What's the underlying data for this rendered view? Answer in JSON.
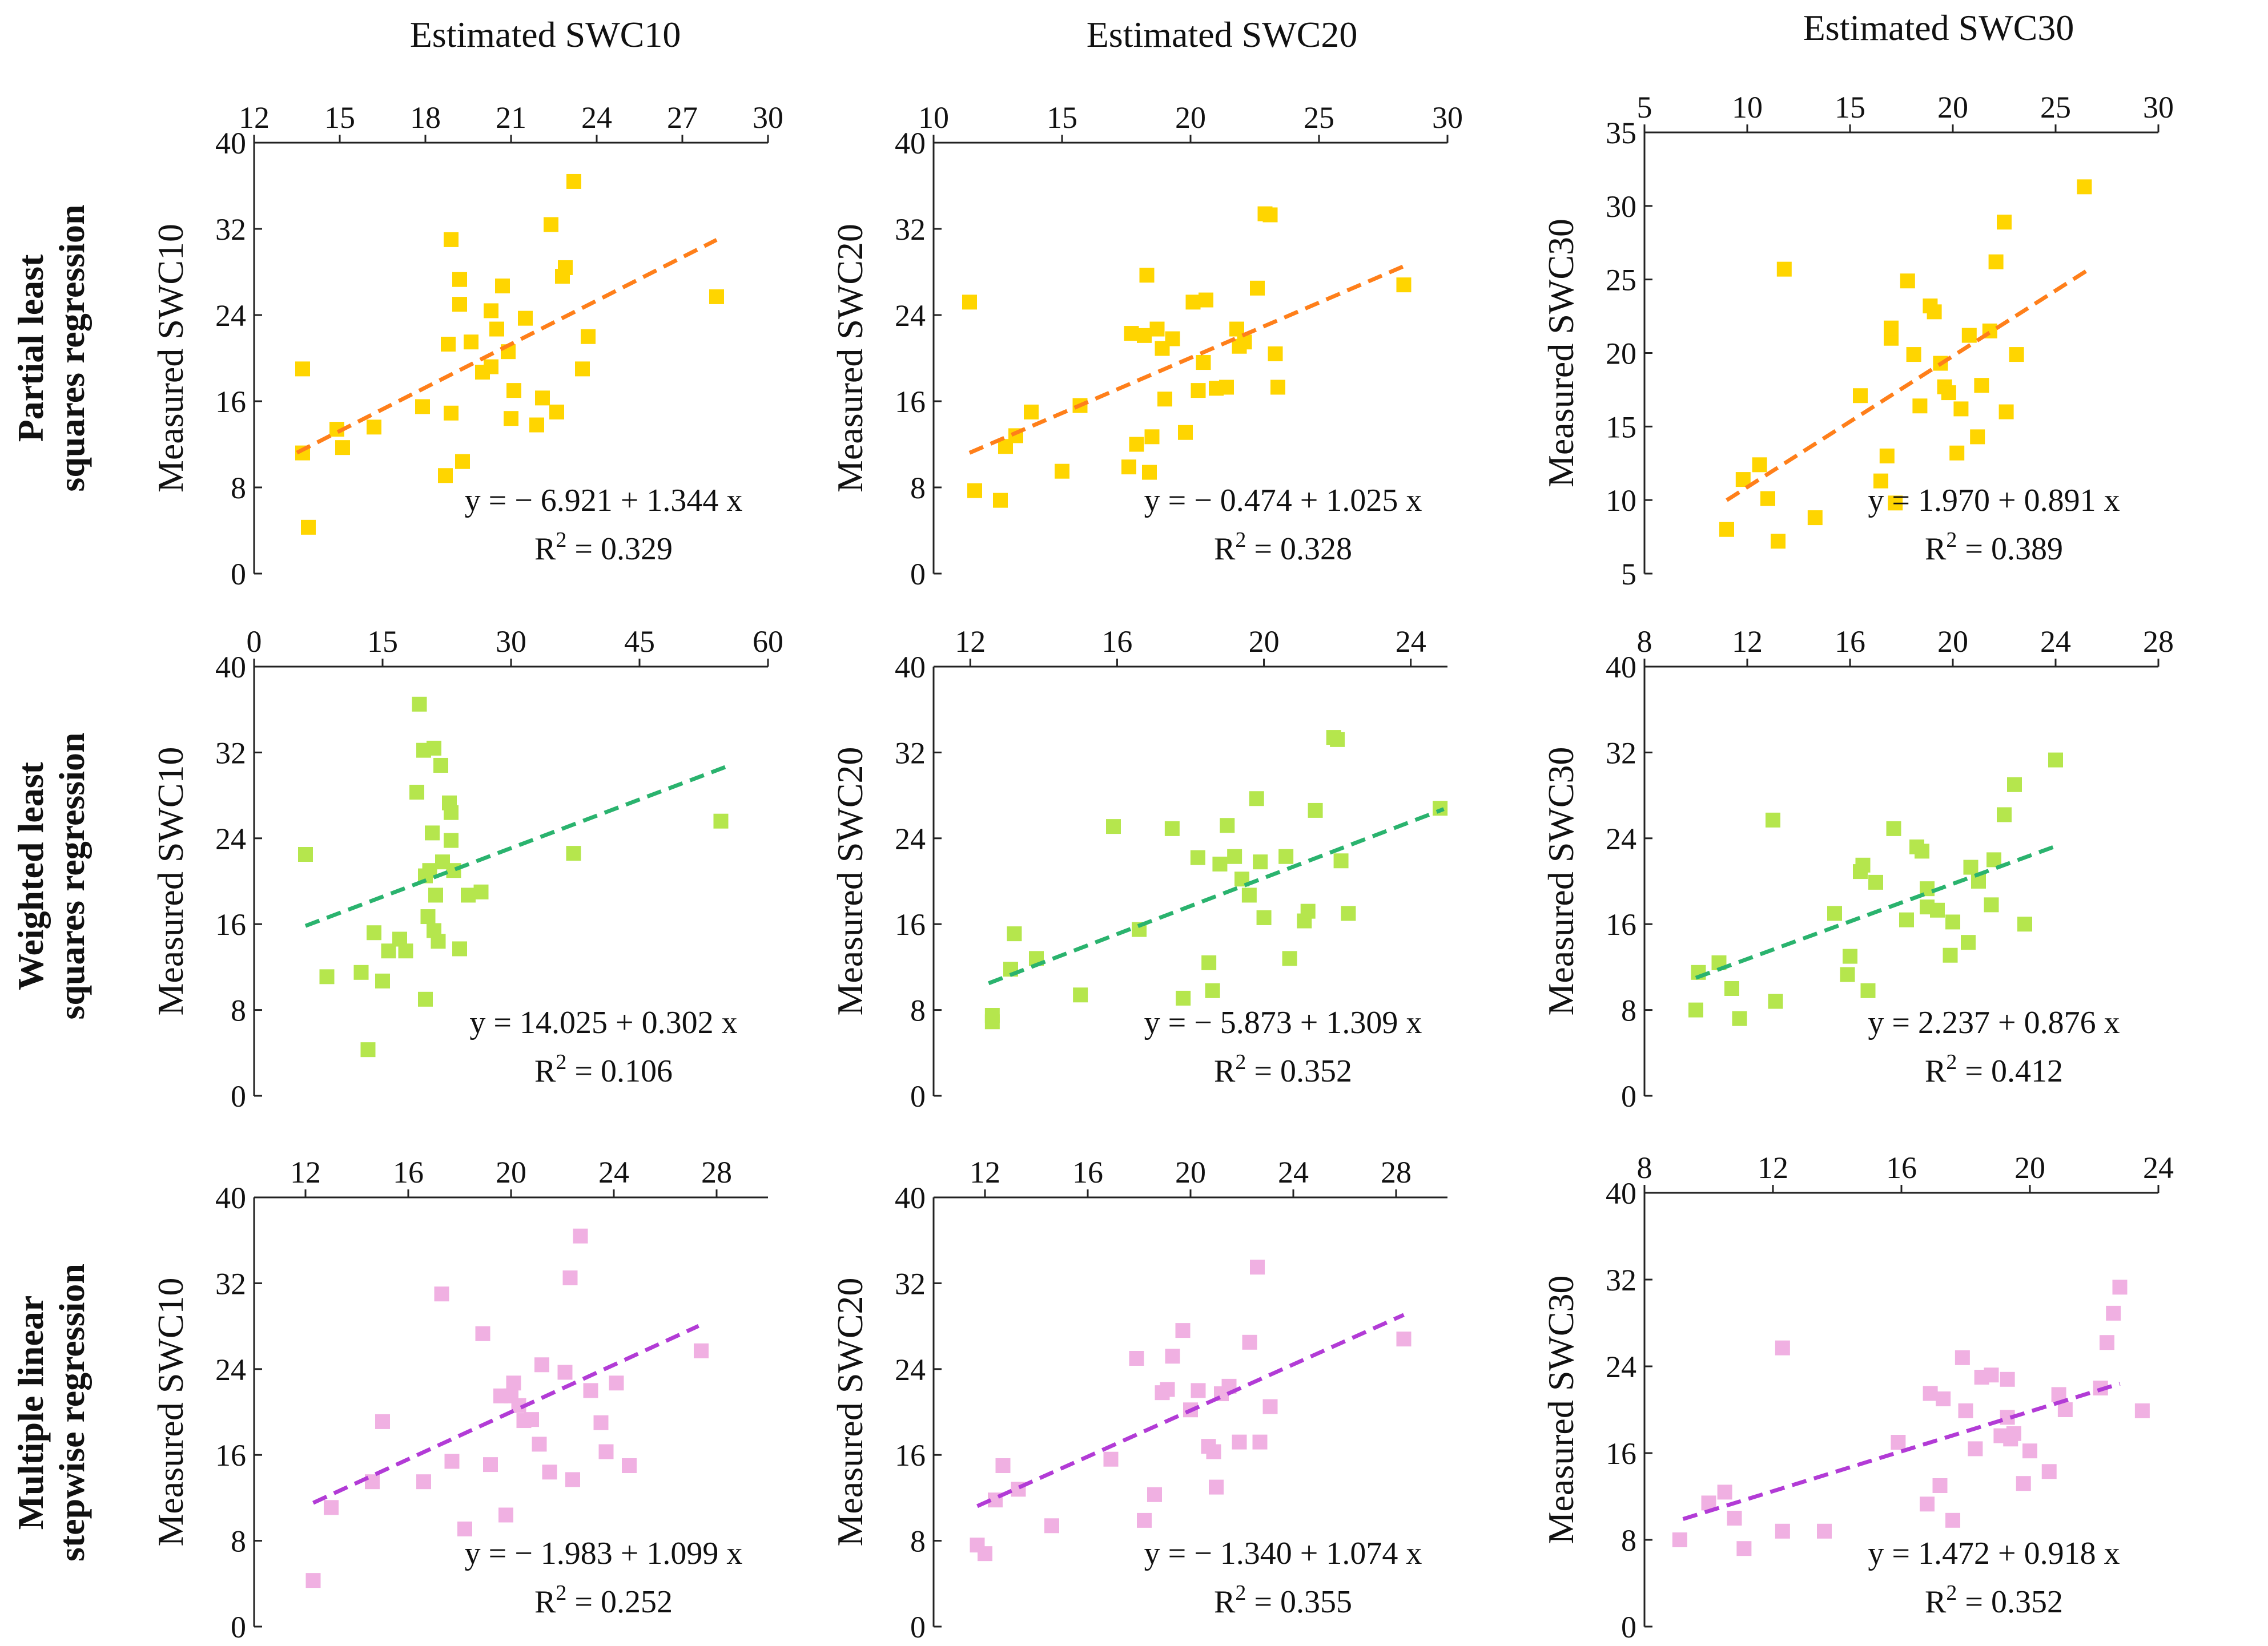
{
  "columns": [
    "Estimated SWC10",
    "Estimated SWC20",
    "Estimated SWC30"
  ],
  "rows": [
    {
      "line1": "Partial least",
      "line2": "squares regression"
    },
    {
      "line1": "Weighted least",
      "line2": "squares regression"
    },
    {
      "line1": "Multiple linear",
      "line2": "stepwise regression"
    }
  ],
  "palette": {
    "pls_marker": "#ffd500",
    "pls_line": "#ff7f1a",
    "wls_marker": "#b5e64d",
    "wls_line": "#2ab36e",
    "mlr_marker": "#f0b0e2",
    "mlr_line": "#b23bd6"
  },
  "chart_data": [
    {
      "type": "scatter",
      "row": 0,
      "col": 0,
      "ylabel": "Measured SWC10",
      "xlim": [
        12,
        30
      ],
      "xticks": [
        "12",
        "15",
        "18",
        "21",
        "24",
        "27",
        "30"
      ],
      "xtickvals": [
        12,
        15,
        18,
        21,
        24,
        27,
        30
      ],
      "ylim": [
        0,
        40
      ],
      "yticks": [
        "0",
        "8",
        "16",
        "24",
        "32",
        "40"
      ],
      "ytickvals": [
        0,
        8,
        16,
        24,
        32,
        40
      ],
      "equation": "y = − 6.921 + 1.344 x",
      "r2_prefix": "R",
      "r2_sup": "2",
      "r2_value": " = 0.329",
      "intercept": -6.921,
      "slope": 1.344,
      "fit_x": [
        13.5,
        28.2
      ],
      "x": [
        13.7,
        13.9,
        13.7,
        14.9,
        15.1,
        16.2,
        17.9,
        18.7,
        18.9,
        18.9,
        19.2,
        19.3,
        19.6,
        20.3,
        20.0,
        20.5,
        20.7,
        20.9,
        21.0,
        21.1,
        21.5,
        21.9,
        22.1,
        22.4,
        22.6,
        22.8,
        22.9,
        23.2,
        23.5,
        23.7,
        28.2,
        18.8,
        19.2,
        20.3
      ],
      "y": [
        11.2,
        4.3,
        19.0,
        13.4,
        11.7,
        13.6,
        15.5,
        9.1,
        14.9,
        31.0,
        27.3,
        10.4,
        21.5,
        19.2,
        18.7,
        22.7,
        26.7,
        20.6,
        14.4,
        17.0,
        23.7,
        13.8,
        16.3,
        32.4,
        15.0,
        27.6,
        28.4,
        36.4,
        19.0,
        22.0,
        25.7,
        21.3,
        25.0,
        24.4
      ]
    },
    {
      "type": "scatter",
      "row": 0,
      "col": 1,
      "ylabel": "Measured SWC20",
      "xlim": [
        10,
        30
      ],
      "xticks": [
        "10",
        "15",
        "20",
        "25",
        "30"
      ],
      "xtickvals": [
        10,
        15,
        20,
        25,
        30
      ],
      "ylim": [
        0,
        40
      ],
      "yticks": [
        "0",
        "8",
        "16",
        "24",
        "32",
        "40"
      ],
      "ytickvals": [
        0,
        8,
        16,
        24,
        32,
        40
      ],
      "equation": "y = − 0.474 + 1.025 x",
      "r2_prefix": "R",
      "r2_sup": "2",
      "r2_value": " = 0.328",
      "intercept": -0.474,
      "slope": 1.025,
      "fit_x": [
        11.4,
        28.3
      ],
      "x": [
        11.4,
        11.6,
        12.6,
        12.8,
        13.2,
        13.8,
        15.0,
        15.7,
        17.6,
        17.7,
        17.9,
        18.2,
        18.3,
        18.4,
        18.5,
        18.7,
        18.9,
        19.0,
        19.3,
        19.8,
        20.1,
        20.3,
        20.5,
        20.6,
        21.0,
        21.4,
        21.8,
        21.9,
        22.1,
        22.6,
        22.9,
        23.1,
        23.3,
        23.4,
        28.3
      ],
      "y": [
        25.2,
        7.7,
        6.8,
        11.8,
        12.8,
        15.0,
        9.5,
        15.6,
        9.9,
        22.3,
        12.0,
        22.1,
        27.7,
        9.4,
        12.7,
        22.7,
        20.9,
        16.2,
        21.8,
        13.1,
        25.2,
        17.0,
        19.6,
        25.4,
        17.2,
        17.3,
        22.7,
        21.1,
        21.5,
        26.5,
        33.4,
        33.3,
        20.4,
        17.3,
        26.8
      ]
    },
    {
      "type": "scatter",
      "row": 0,
      "col": 2,
      "ylabel": "Measured SWC30",
      "xlim": [
        5,
        30
      ],
      "xticks": [
        "5",
        "10",
        "15",
        "20",
        "25",
        "30"
      ],
      "xtickvals": [
        5,
        10,
        15,
        20,
        25,
        30
      ],
      "ylim": [
        5,
        35
      ],
      "yticks": [
        "5",
        "10",
        "15",
        "20",
        "25",
        "30",
        "35"
      ],
      "ytickvals": [
        5,
        10,
        15,
        20,
        25,
        30,
        35
      ],
      "equation": "y = 1.970 + 0.891 x",
      "r2_prefix": "R",
      "r2_sup": "2",
      "r2_value": " = 0.389",
      "intercept": 1.97,
      "slope": 0.891,
      "fit_x": [
        9.0,
        26.5
      ],
      "x": [
        9.0,
        9.8,
        10.6,
        11.0,
        11.5,
        11.8,
        13.3,
        15.5,
        16.5,
        16.8,
        17.0,
        17.0,
        17.2,
        17.8,
        18.1,
        18.4,
        18.9,
        19.1,
        19.4,
        19.6,
        19.8,
        20.2,
        20.4,
        20.8,
        21.2,
        21.4,
        21.8,
        22.1,
        22.5,
        22.6,
        23.1,
        26.4
      ],
      "y": [
        8.0,
        11.4,
        12.4,
        10.1,
        7.2,
        25.7,
        8.8,
        17.1,
        11.3,
        13.0,
        21.0,
        21.7,
        9.8,
        24.9,
        19.9,
        16.4,
        23.2,
        22.8,
        19.3,
        17.7,
        17.3,
        13.2,
        16.2,
        21.2,
        14.3,
        17.8,
        21.5,
        26.2,
        28.9,
        16.0,
        19.9,
        31.3
      ]
    },
    {
      "type": "scatter",
      "row": 1,
      "col": 0,
      "ylabel": "Measured SWC10",
      "xlim": [
        0,
        60
      ],
      "xticks": [
        "0",
        "15",
        "30",
        "45",
        "60"
      ],
      "xtickvals": [
        0,
        15,
        30,
        45,
        60
      ],
      "ylim": [
        0,
        40
      ],
      "yticks": [
        "0",
        "8",
        "16",
        "24",
        "32",
        "40"
      ],
      "ytickvals": [
        0,
        8,
        16,
        24,
        32,
        40
      ],
      "equation": "y = 14.025 + 0.302 x",
      "r2_prefix": "R",
      "r2_sup": "2",
      "r2_value": " = 0.106",
      "intercept": 14.025,
      "slope": 0.302,
      "fit_x": [
        6.0,
        55.0
      ],
      "x": [
        6.0,
        8.5,
        12.5,
        13.3,
        14.0,
        15.0,
        15.7,
        17.0,
        17.7,
        19.0,
        19.3,
        19.8,
        20.0,
        20.0,
        20.3,
        20.5,
        20.8,
        21.0,
        21.0,
        21.2,
        21.5,
        21.8,
        22.0,
        22.8,
        23.0,
        23.0,
        23.3,
        24.0,
        25.0,
        26.5,
        37.3,
        54.5
      ],
      "y": [
        22.5,
        11.1,
        11.5,
        4.3,
        15.2,
        10.7,
        13.5,
        14.6,
        13.5,
        28.3,
        36.5,
        32.2,
        9.0,
        20.5,
        16.7,
        21.0,
        24.5,
        32.4,
        15.4,
        18.7,
        14.4,
        30.8,
        21.8,
        27.3,
        23.8,
        26.4,
        21.0,
        13.7,
        18.7,
        19.0,
        22.6,
        25.6
      ]
    },
    {
      "type": "scatter",
      "row": 1,
      "col": 1,
      "ylabel": "Measured SWC20",
      "xlim": [
        11,
        25
      ],
      "xticks": [
        "12",
        "16",
        "20",
        "24"
      ],
      "xtickvals": [
        12,
        16,
        20,
        24
      ],
      "ylim": [
        0,
        40
      ],
      "yticks": [
        "0",
        "8",
        "16",
        "24",
        "32",
        "40"
      ],
      "ytickvals": [
        0,
        8,
        16,
        24,
        32,
        40
      ],
      "equation": "y = − 5.873 + 1.309 x",
      "r2_prefix": "R",
      "r2_sup": "2",
      "r2_value": " = 0.352",
      "intercept": -5.873,
      "slope": 1.309,
      "fit_x": [
        12.5,
        24.9
      ],
      "x": [
        12.6,
        12.6,
        13.1,
        13.2,
        13.8,
        15.0,
        15.9,
        16.6,
        17.5,
        17.8,
        18.2,
        18.5,
        18.6,
        18.8,
        19.0,
        19.2,
        19.4,
        19.6,
        19.8,
        19.9,
        20.0,
        20.6,
        20.7,
        21.1,
        21.2,
        21.4,
        21.9,
        22.0,
        22.1,
        22.3,
        24.8
      ],
      "y": [
        6.9,
        7.5,
        11.8,
        15.1,
        12.8,
        9.4,
        25.1,
        15.5,
        24.9,
        9.1,
        22.2,
        12.4,
        9.8,
        21.6,
        25.2,
        22.3,
        20.2,
        18.7,
        27.7,
        21.8,
        16.6,
        22.3,
        12.8,
        16.3,
        17.2,
        26.6,
        33.4,
        33.2,
        21.9,
        17.0,
        26.8
      ]
    },
    {
      "type": "scatter",
      "row": 1,
      "col": 2,
      "ylabel": "Measured SWC30",
      "xlim": [
        8,
        28
      ],
      "xticks": [
        "8",
        "12",
        "16",
        "20",
        "24",
        "28"
      ],
      "xtickvals": [
        8,
        12,
        16,
        20,
        24,
        28
      ],
      "ylim": [
        0,
        40
      ],
      "yticks": [
        "0",
        "8",
        "16",
        "24",
        "32",
        "40"
      ],
      "ytickvals": [
        0,
        8,
        16,
        24,
        32,
        40
      ],
      "equation": "y = 2.237 + 0.876 x",
      "r2_prefix": "R",
      "r2_sup": "2",
      "r2_value": " = 0.412",
      "intercept": 2.237,
      "slope": 0.876,
      "fit_x": [
        10.0,
        24.0
      ],
      "x": [
        10.0,
        10.1,
        10.9,
        11.4,
        11.7,
        13.0,
        13.1,
        15.4,
        15.9,
        16.0,
        16.4,
        16.5,
        16.7,
        17.0,
        17.7,
        18.2,
        18.6,
        18.8,
        19.0,
        19.0,
        19.4,
        19.9,
        20.0,
        20.6,
        20.7,
        21.0,
        21.5,
        21.6,
        22.0,
        22.4,
        22.8,
        24.0
      ],
      "y": [
        8.0,
        11.5,
        12.4,
        10.0,
        7.2,
        25.7,
        8.8,
        17.0,
        11.3,
        13.0,
        20.9,
        21.5,
        9.8,
        19.9,
        24.9,
        16.4,
        23.2,
        22.8,
        19.3,
        17.6,
        17.3,
        13.1,
        16.2,
        14.3,
        21.3,
        20.0,
        17.8,
        22.0,
        26.2,
        29.0,
        16.0,
        31.3
      ]
    },
    {
      "type": "scatter",
      "row": 2,
      "col": 0,
      "ylabel": "Measured SWC10",
      "xlim": [
        10,
        30
      ],
      "xticks": [
        "12",
        "16",
        "20",
        "24",
        "28"
      ],
      "xtickvals": [
        12,
        16,
        20,
        24,
        28
      ],
      "ylim": [
        0,
        40
      ],
      "yticks": [
        "0",
        "8",
        "16",
        "24",
        "32",
        "40"
      ],
      "ytickvals": [
        0,
        8,
        16,
        24,
        32,
        40
      ],
      "equation": "y = − 1.983 + 1.099 x",
      "r2_prefix": "R",
      "r2_sup": "2",
      "r2_value": " = 0.252",
      "intercept": -1.983,
      "slope": 1.099,
      "fit_x": [
        12.3,
        27.3
      ],
      "x": [
        12.3,
        13.0,
        14.6,
        15.0,
        16.6,
        17.3,
        17.7,
        18.2,
        18.9,
        19.2,
        19.6,
        19.8,
        20.0,
        20.1,
        20.3,
        20.5,
        20.8,
        21.1,
        21.2,
        21.5,
        22.1,
        22.3,
        22.4,
        22.7,
        23.1,
        23.5,
        23.7,
        24.1,
        24.6,
        27.4
      ],
      "y": [
        4.3,
        11.1,
        13.5,
        19.1,
        13.5,
        31.0,
        15.4,
        9.1,
        27.3,
        15.1,
        21.5,
        10.4,
        21.5,
        22.7,
        20.6,
        19.2,
        19.3,
        17.0,
        24.4,
        14.4,
        23.7,
        32.5,
        13.7,
        36.4,
        22.0,
        19.0,
        16.3,
        22.7,
        15.0,
        25.7
      ]
    },
    {
      "type": "scatter",
      "row": 2,
      "col": 1,
      "ylabel": "Measured SWC20",
      "xlim": [
        10,
        30
      ],
      "xticks": [
        "12",
        "16",
        "20",
        "24",
        "28"
      ],
      "xtickvals": [
        12,
        16,
        20,
        24,
        28
      ],
      "ylim": [
        0,
        40
      ],
      "yticks": [
        "0",
        "8",
        "16",
        "24",
        "32",
        "40"
      ],
      "ytickvals": [
        0,
        8,
        16,
        24,
        32,
        40
      ],
      "equation": "y = − 1.340 + 1.074 x",
      "r2_prefix": "R",
      "r2_sup": "2",
      "r2_value": " = 0.355",
      "intercept": -1.34,
      "slope": 1.074,
      "fit_x": [
        11.7,
        28.3
      ],
      "x": [
        11.7,
        12.0,
        12.4,
        12.7,
        13.3,
        14.6,
        16.9,
        17.9,
        18.2,
        18.6,
        18.9,
        19.1,
        19.3,
        19.7,
        20.0,
        20.3,
        20.7,
        20.9,
        21.0,
        21.2,
        21.5,
        21.9,
        22.3,
        22.6,
        22.7,
        23.1,
        28.3
      ],
      "y": [
        7.6,
        6.8,
        11.8,
        15.0,
        12.8,
        9.4,
        15.6,
        25.0,
        9.9,
        12.3,
        21.8,
        22.1,
        25.2,
        27.6,
        20.2,
        22.0,
        16.8,
        16.3,
        13.0,
        21.7,
        22.4,
        17.2,
        26.5,
        33.5,
        17.2,
        20.5,
        26.8
      ]
    },
    {
      "type": "scatter",
      "row": 2,
      "col": 2,
      "ylabel": "Measured SWC30",
      "xlim": [
        8,
        24
      ],
      "xticks": [
        "8",
        "12",
        "16",
        "20",
        "24"
      ],
      "xtickvals": [
        8,
        12,
        16,
        20,
        24
      ],
      "ylim": [
        0,
        40
      ],
      "yticks": [
        "0",
        "8",
        "16",
        "24",
        "32",
        "40"
      ],
      "ytickvals": [
        0,
        8,
        16,
        24,
        32,
        40
      ],
      "equation": "y = 1.472 + 0.918 x",
      "r2_prefix": "R",
      "r2_sup": "2",
      "r2_value": " = 0.352",
      "intercept": 1.472,
      "slope": 0.918,
      "fit_x": [
        9.2,
        22.8
      ],
      "x": [
        9.1,
        10.0,
        10.5,
        10.8,
        11.1,
        12.3,
        12.3,
        13.6,
        15.9,
        16.8,
        16.9,
        17.2,
        17.3,
        17.6,
        17.9,
        18.0,
        18.3,
        18.5,
        18.8,
        19.1,
        19.3,
        19.3,
        19.4,
        19.5,
        19.8,
        20.0,
        20.6,
        20.9,
        21.1,
        22.2,
        22.4,
        22.6,
        22.8,
        23.5
      ],
      "y": [
        8.0,
        11.4,
        12.4,
        10.0,
        7.2,
        25.7,
        8.8,
        8.8,
        17.0,
        11.3,
        21.5,
        13.0,
        21.0,
        9.8,
        24.8,
        19.9,
        16.4,
        23.0,
        23.2,
        17.6,
        19.3,
        22.8,
        17.3,
        17.8,
        13.2,
        16.2,
        14.3,
        21.4,
        20.0,
        22.0,
        26.2,
        28.9,
        31.3,
        19.9
      ]
    }
  ]
}
